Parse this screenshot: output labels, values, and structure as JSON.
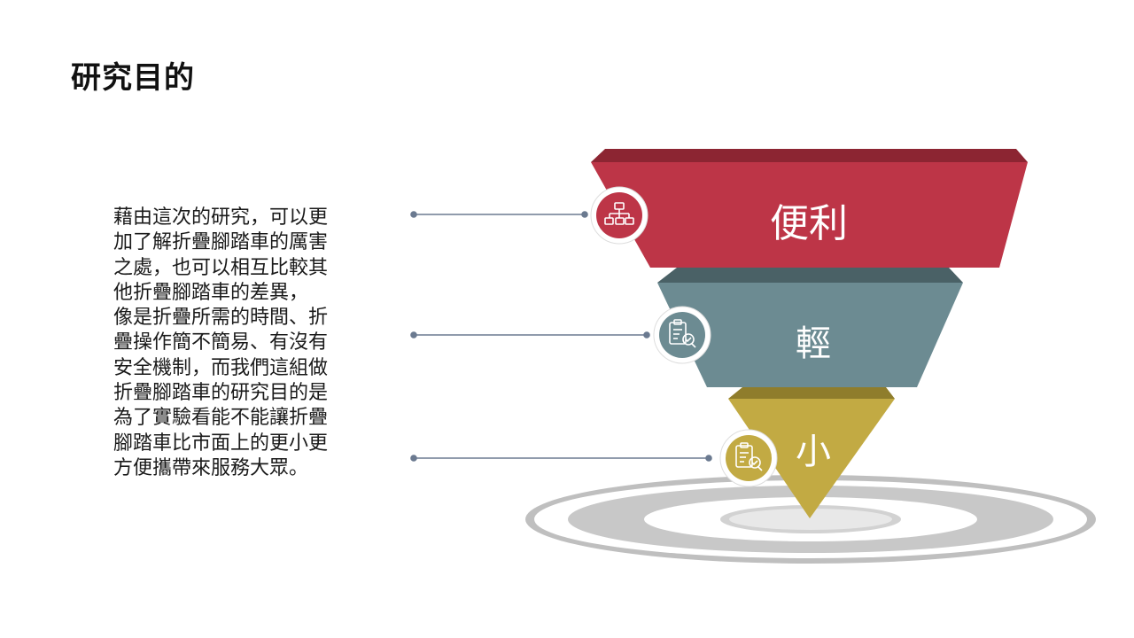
{
  "title": "研究目的",
  "body_text": "藉由這次的研究，可以更\n加了解折疊腳踏車的厲害\n之處，也可以相互比較其\n他折疊腳踏車的差異，\n像是折疊所需的時間、折\n疊操作簡不簡易、有沒有\n安全機制，而我們這組做\n折疊腳踏車的研究目的是\n為了實驗看能不能讓折疊\n腳踏車比市面上的更小更\n方便攜帶來服務大眾。",
  "funnel": {
    "layers": [
      {
        "label": "便利",
        "color": "#bd3547",
        "icon": "org-chart-icon"
      },
      {
        "label": "輕",
        "color": "#6c8b92",
        "icon": "checklist-icon"
      },
      {
        "label": "小",
        "color": "#c2aa43",
        "icon": "checklist-icon"
      }
    ]
  }
}
